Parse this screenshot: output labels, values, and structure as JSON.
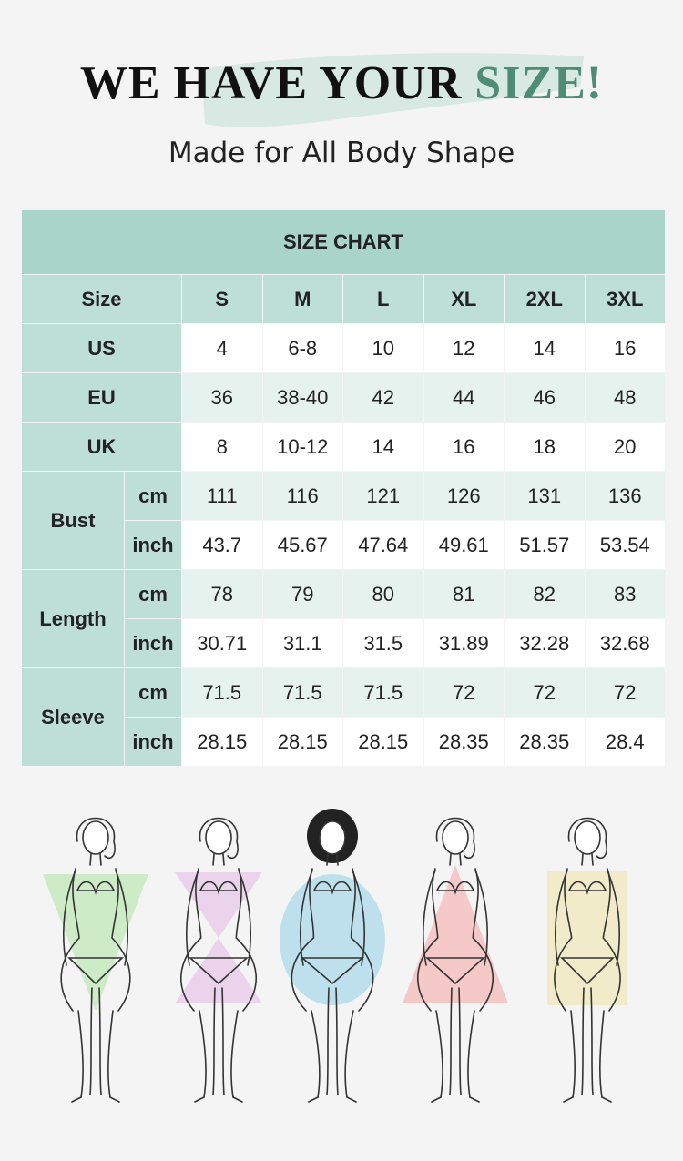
{
  "header": {
    "title_main": "WE HAVE YOUR ",
    "title_accent": "SIZE!",
    "subtitle": "Made for All Body Shape"
  },
  "table": {
    "title": "SIZE CHART",
    "size_label": "Size",
    "sizes": [
      "S",
      "M",
      "L",
      "XL",
      "2XL",
      "3XL"
    ],
    "regions": [
      {
        "label": "US",
        "values": [
          "4",
          "6-8",
          "10",
          "12",
          "14",
          "16"
        ]
      },
      {
        "label": "EU",
        "values": [
          "36",
          "38-40",
          "42",
          "44",
          "46",
          "48"
        ]
      },
      {
        "label": "UK",
        "values": [
          "8",
          "10-12",
          "14",
          "16",
          "18",
          "20"
        ]
      }
    ],
    "measures": [
      {
        "label": "Bust",
        "rows": [
          {
            "unit": "cm",
            "values": [
              "111",
              "116",
              "121",
              "126",
              "131",
              "136"
            ]
          },
          {
            "unit": "inch",
            "values": [
              "43.7",
              "45.67",
              "47.64",
              "49.61",
              "51.57",
              "53.54"
            ]
          }
        ]
      },
      {
        "label": "Length",
        "rows": [
          {
            "unit": "cm",
            "values": [
              "78",
              "79",
              "80",
              "81",
              "82",
              "83"
            ]
          },
          {
            "unit": "inch",
            "values": [
              "30.71",
              "31.1",
              "31.5",
              "31.89",
              "32.28",
              "32.68"
            ]
          }
        ]
      },
      {
        "label": "Sleeve",
        "rows": [
          {
            "unit": "cm",
            "values": [
              "71.5",
              "71.5",
              "71.5",
              "72",
              "72",
              "72"
            ]
          },
          {
            "unit": "inch",
            "values": [
              "28.15",
              "28.15",
              "28.15",
              "28.35",
              "28.35",
              "28.4"
            ]
          }
        ]
      }
    ]
  },
  "figures": [
    {
      "shape": "inverted-triangle-body-figure",
      "color": "#cdebc6"
    },
    {
      "shape": "hourglass-body-figure",
      "color": "#ecd3ec"
    },
    {
      "shape": "round-body-figure",
      "color": "#bde0ec"
    },
    {
      "shape": "pear-body-figure",
      "color": "#f6c9c9"
    },
    {
      "shape": "rectangle-body-figure",
      "color": "#f1ebc9"
    }
  ],
  "colors": {
    "accent": "#4f8c76",
    "header_bg": "#a9d4c8",
    "label_bg": "#bddfd6",
    "row_tint": "#e6f2ee"
  }
}
